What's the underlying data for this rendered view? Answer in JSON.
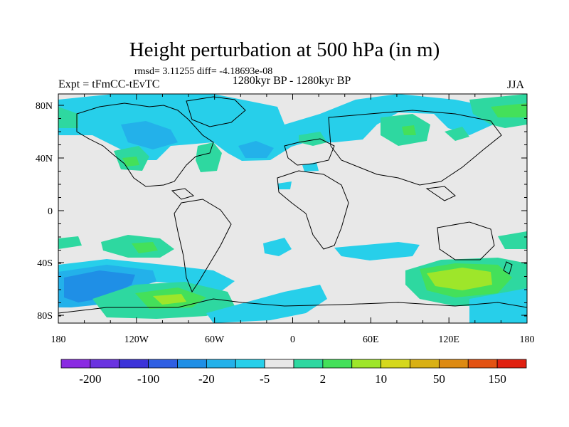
{
  "header": {
    "title": "Height perturbation at 500 hPa (in m)",
    "stats": "rmsd= 3.11255 diff= -4.18693e-08",
    "experiment": "Expt = tFmCC-tEvTC",
    "period": "1280kyr BP - 1280kyr BP",
    "season": "JJA"
  },
  "axes": {
    "y_labels": [
      "80N",
      "40N",
      "0",
      "40S",
      "80S"
    ],
    "x_labels": [
      "180",
      "120W",
      "60W",
      "0",
      "60E",
      "120E",
      "180"
    ]
  },
  "colorbar": {
    "colors": [
      "#8a2be2",
      "#6a33e0",
      "#3c33d9",
      "#2f5fe3",
      "#1f8fe6",
      "#23b1ea",
      "#27cfea",
      "#e8e8e8",
      "#2ed8a0",
      "#44e05a",
      "#9ee62a",
      "#d5d81c",
      "#d9b014",
      "#dd8a12",
      "#e35212",
      "#e02010"
    ],
    "labels": [
      "-200",
      "-100",
      "-20",
      "-5",
      "2",
      "10",
      "50",
      "150"
    ]
  },
  "legend_colors": {
    "neutral": "#e8e8e8",
    "cyan": "#27cfea",
    "light_blue": "#23b1ea",
    "blue": "#1f8fe6",
    "teal_green": "#2ed8a0",
    "green": "#44e05a",
    "yellow_green": "#9ee62a"
  }
}
